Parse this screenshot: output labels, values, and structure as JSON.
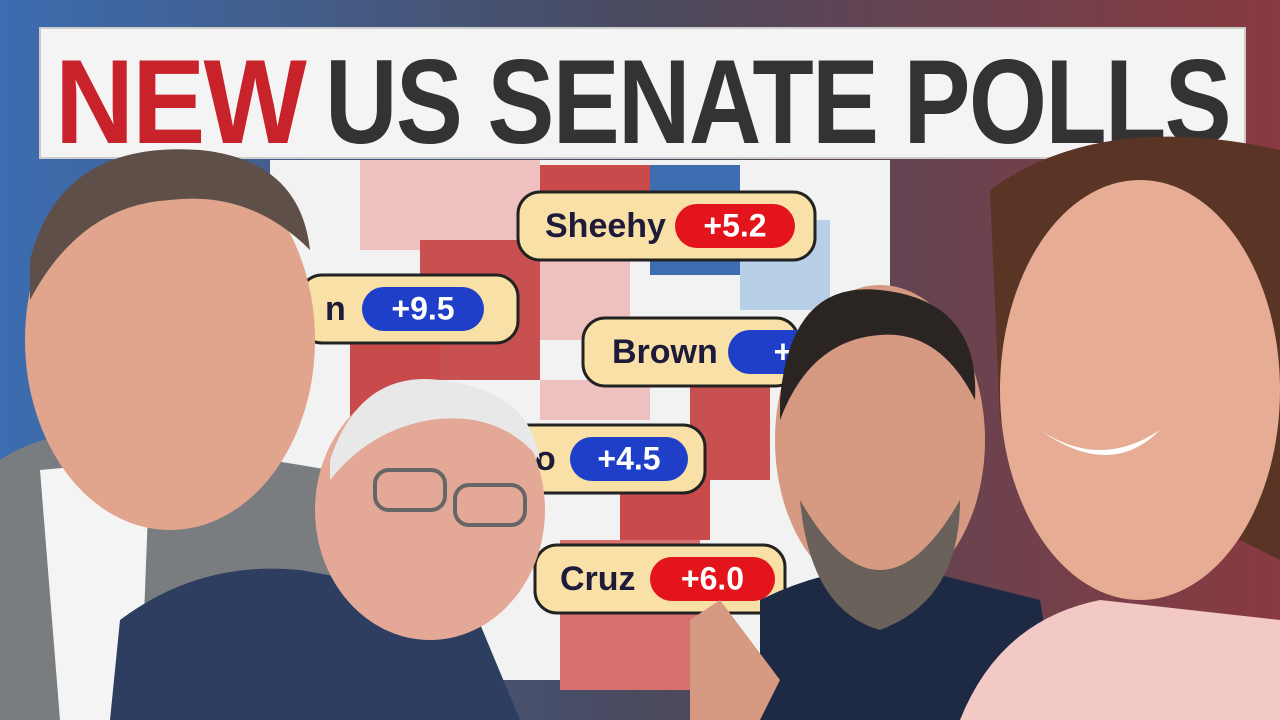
{
  "header": {
    "highlight": "NEW",
    "title": "US SENATE POLLS"
  },
  "polls": [
    {
      "name": "Sheehy",
      "margin": "+5.2",
      "color": "#e3141c"
    },
    {
      "name": "n",
      "margin": "+9.5",
      "color": "#1f3fc8"
    },
    {
      "name": "Brown",
      "margin": "+",
      "color": "#1f3fc8"
    },
    {
      "name": "o",
      "margin": "+4.5",
      "color": "#1f3fc8"
    },
    {
      "name": "Cruz",
      "margin": "+6.0",
      "color": "#e3141c"
    }
  ]
}
